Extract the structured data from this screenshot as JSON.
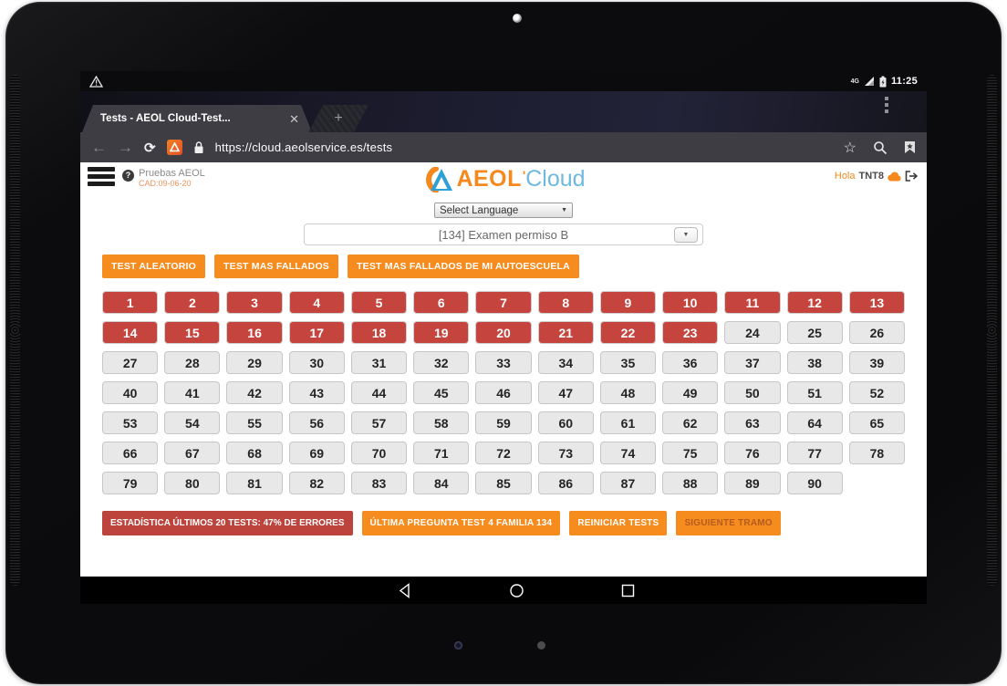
{
  "status_bar": {
    "network": "4G",
    "time": "11:25"
  },
  "browser": {
    "tab_title": "Tests - AEOL Cloud-Test...",
    "close_label": "✕",
    "new_tab_label": "+",
    "url": "https://cloud.aeolservice.es/tests"
  },
  "header": {
    "account_name": "Pruebas AEOL",
    "account_code": "CAD:09-06-20",
    "help_glyph": "?",
    "logo_aeol": "AEOL",
    "logo_tick": "'",
    "logo_cloud": "Cloud",
    "greeting": "Hola",
    "username": "TNT8"
  },
  "selects": {
    "language_value": "Select Language",
    "family_value": "[134] Examen permiso B"
  },
  "actions": [
    {
      "label": "TEST ALEATORIO"
    },
    {
      "label": "TEST MAS FALLADOS"
    },
    {
      "label": "TEST MAS FALLADOS DE MI AUTOESCUELA"
    }
  ],
  "grid": {
    "first": 1,
    "last": 90,
    "failed_max": 23,
    "columns": 13
  },
  "footer_actions": [
    {
      "label": "ESTADÍSTICA ÚLTIMOS 20 TESTS: 47% DE ERRORES",
      "style": "red"
    },
    {
      "label": "ÚLTIMA PREGUNTA TEST 4 FAMILIA 134",
      "style": "orange"
    },
    {
      "label": "REINICIAR TESTS",
      "style": "orange"
    },
    {
      "label": "SIGUIENTE TRAMO",
      "style": "orange-disabled"
    }
  ],
  "colors": {
    "accent_orange": "#f68b1e",
    "danger_red": "#c5453e",
    "footer_red": "#bc443c",
    "logo_blue": "#6fb9df",
    "gray_button": "#e8e8e8"
  }
}
